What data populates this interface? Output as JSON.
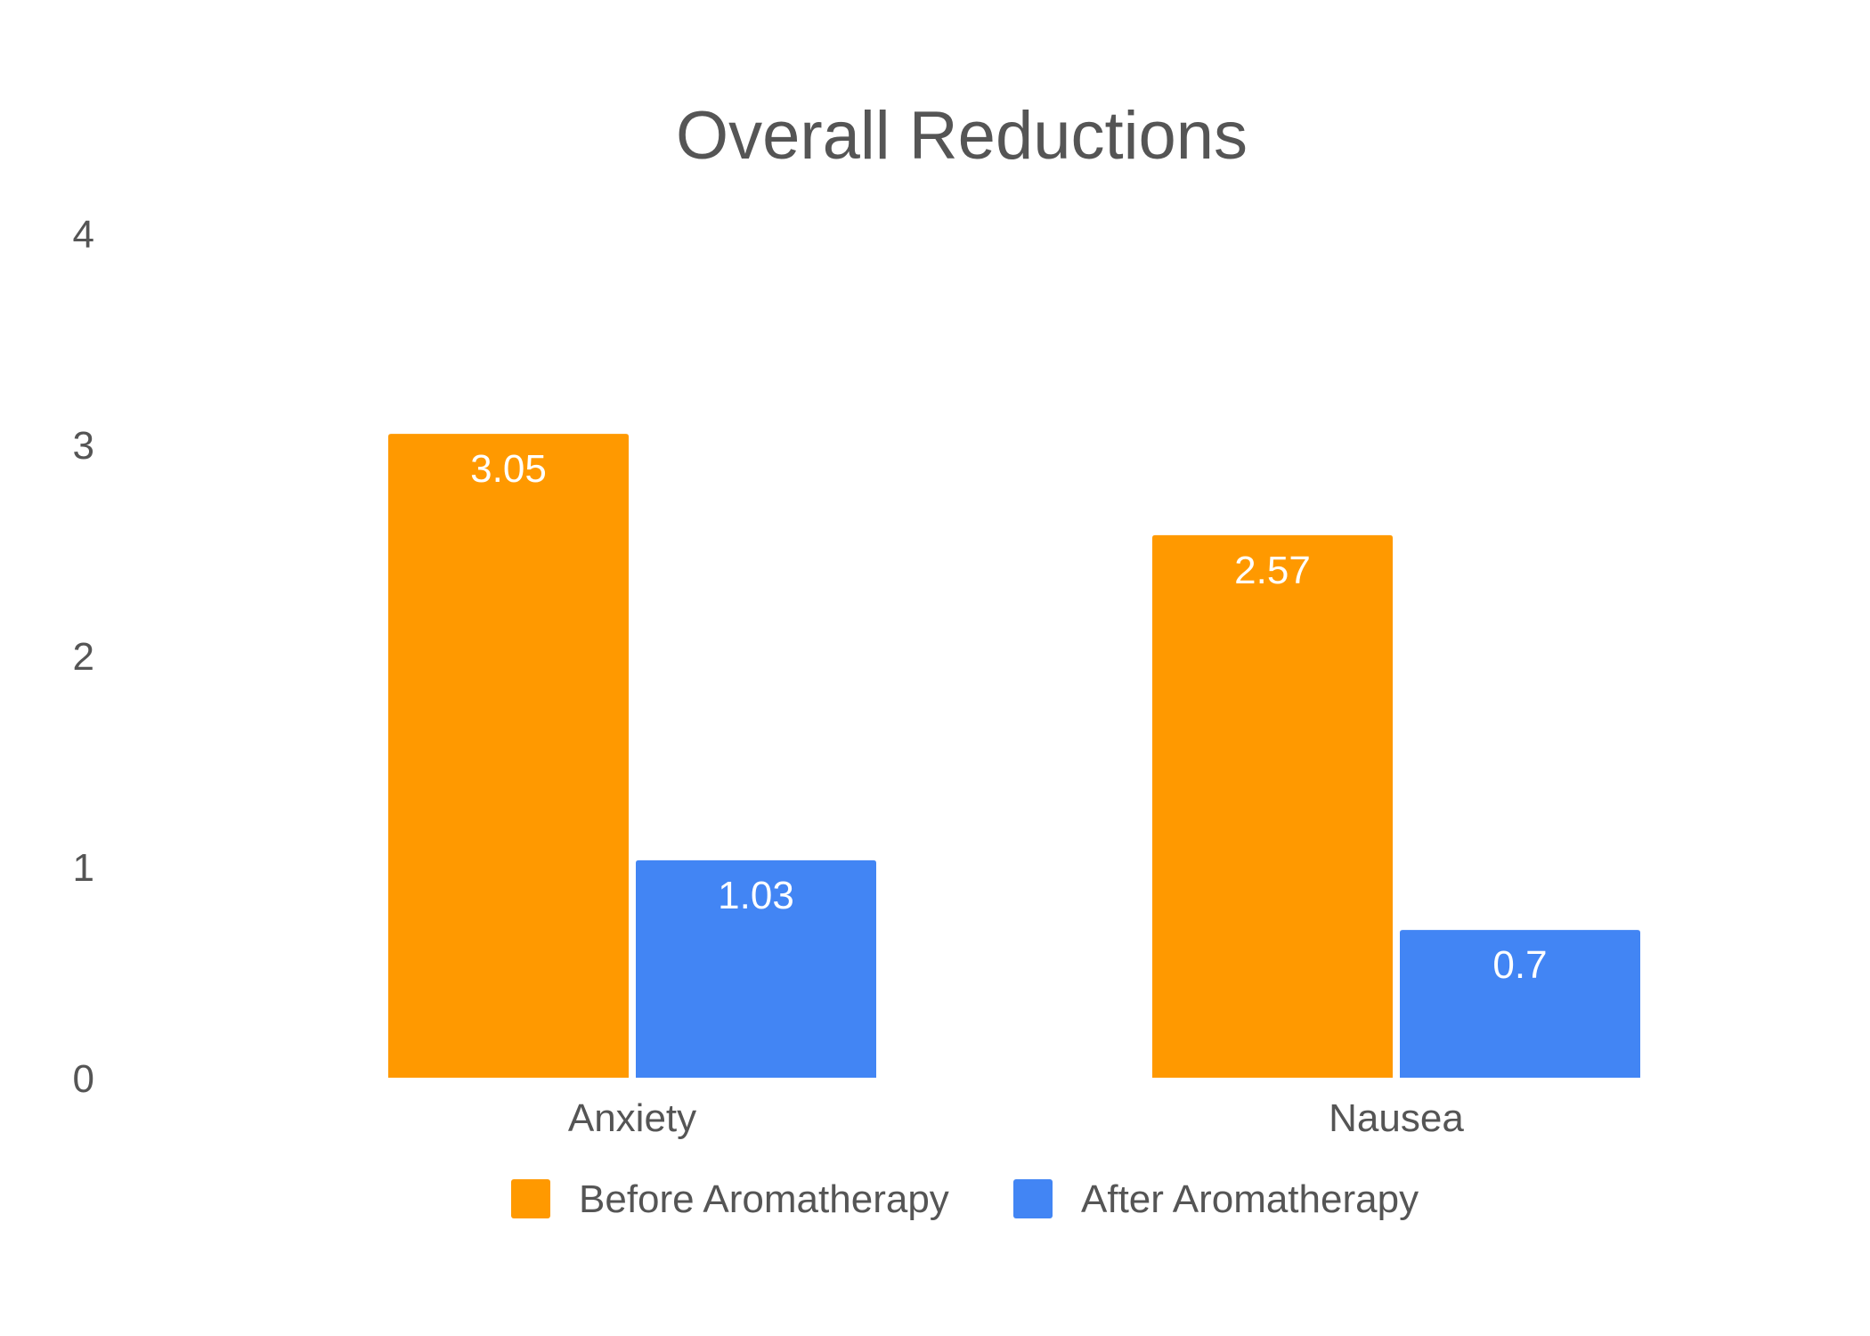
{
  "chart_data": {
    "type": "bar",
    "title": "Overall Reductions",
    "xlabel": "",
    "ylabel": "",
    "categories": [
      "Anxiety",
      "Nausea"
    ],
    "series": [
      {
        "name": "Before Aromatherapy",
        "values": [
          3.05,
          2.57
        ],
        "labels": [
          "3.05",
          "2.57"
        ],
        "color": "#ff9900"
      },
      {
        "name": "After Aromatherapy",
        "values": [
          1.03,
          0.7
        ],
        "labels": [
          "1.03",
          "0.7"
        ],
        "color": "#4285f4"
      }
    ],
    "ylim": [
      0,
      4
    ],
    "yticks": [
      "0",
      "1",
      "2",
      "3",
      "4"
    ],
    "grid": false,
    "legend_position": "bottom"
  }
}
